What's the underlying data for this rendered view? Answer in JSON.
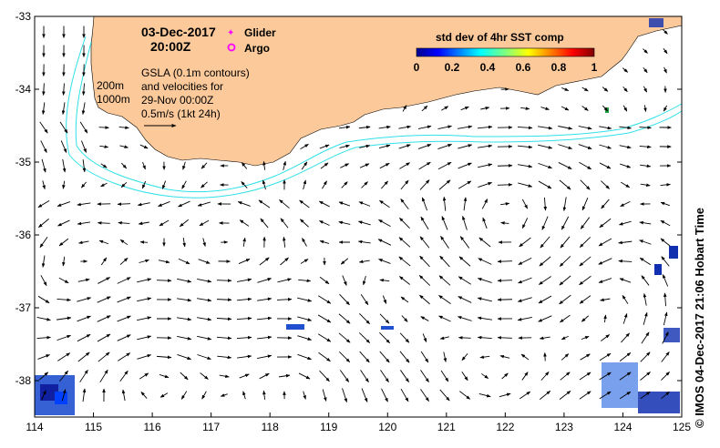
{
  "map": {
    "lon_range": [
      114,
      125
    ],
    "lat_range": [
      -38.5,
      -33
    ],
    "x_ticks": [
      "114",
      "115",
      "116",
      "117",
      "118",
      "119",
      "120",
      "121",
      "122",
      "123",
      "124",
      "125"
    ],
    "y_ticks": [
      "-33",
      "-34",
      "-35",
      "-36",
      "-37",
      "-38"
    ],
    "land_color": "#fbc99a",
    "contour_color": "#30e0e8"
  },
  "header": {
    "date": "03-Dec-2017",
    "time": "20:00Z"
  },
  "legend": {
    "glider_label": "Glider",
    "argo_label": "Argo",
    "glider_color": "#ff00ff",
    "argo_color": "#ff00ff"
  },
  "contours": {
    "shallow_label": "200m",
    "deep_label": "1000m"
  },
  "gsla": {
    "line1": "GSLA (0.1m contours)",
    "line2": "and velocities for",
    "line3": "29-Nov 00:00Z",
    "scale_label": "0.5m/s (1kt 24h)"
  },
  "colorbar": {
    "title": "std dev of 4hr SST comp",
    "ticks": [
      "0",
      "0.2",
      "0.4",
      "0.6",
      "0.8",
      "1"
    ]
  },
  "credit": "© IMOS 04-Dec-2017 21:06 Hobart Time"
}
